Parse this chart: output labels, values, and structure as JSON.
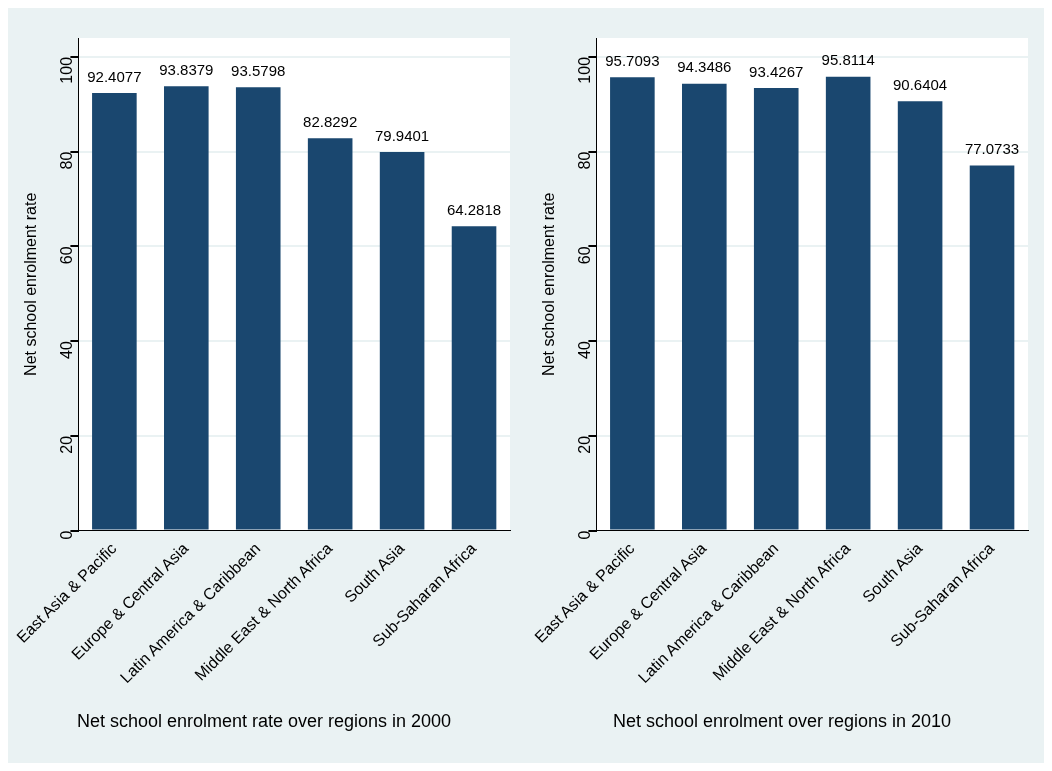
{
  "chart_data": [
    {
      "type": "bar",
      "title": "Net school enrolment rate over regions in 2000",
      "ylabel": "Net school enrolment rate",
      "categories": [
        "East Asia & Pacific",
        "Europe & Central Asia",
        "Latin America & Caribbean",
        "Middle East & North Africa",
        "South Asia",
        "Sub-Saharan Africa"
      ],
      "values": [
        92.4077,
        93.8379,
        93.5798,
        82.8292,
        79.9401,
        64.2818
      ],
      "color": "#1a476f",
      "ylim": [
        0,
        104
      ],
      "yticks": [
        0,
        20,
        40,
        60,
        80,
        100
      ],
      "grid": "y",
      "data_labels": true
    },
    {
      "type": "bar",
      "title": "Net school enrolment over regions in 2010",
      "ylabel": "Net school enrolment rate",
      "categories": [
        "East Asia & Pacific",
        "Europe & Central Asia",
        "Latin America & Caribbean",
        "Middle East & North Africa",
        "South Asia",
        "Sub-Saharan Africa"
      ],
      "values": [
        95.7093,
        94.3486,
        93.4267,
        95.8114,
        90.6404,
        77.0733
      ],
      "color": "#1a476f",
      "ylim": [
        0,
        104
      ],
      "yticks": [
        0,
        20,
        40,
        60,
        80,
        100
      ],
      "grid": "y",
      "data_labels": true
    }
  ]
}
